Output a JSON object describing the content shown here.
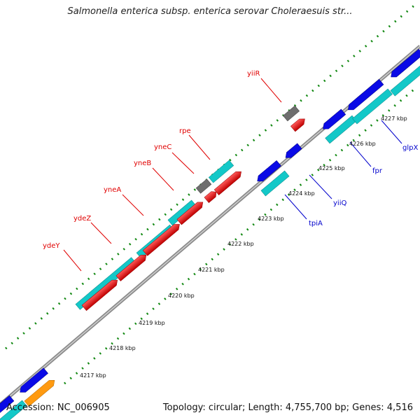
{
  "title": "Salmonella enterica subsp. enterica serovar Choleraesuis str...",
  "footer": {
    "accession": "Accession: NC_006905",
    "summary": "Topology: circular; Length: 4,755,700 bp; Genes: 4,516"
  },
  "colors": {
    "backbone": "#8a8a8a",
    "tick_dots": "#118811",
    "red_gene": "#ee0a0a",
    "cyan_gene": "#13c8c8",
    "blue_gene": "#0a0ae6",
    "gray_gene": "#6e6e6e",
    "orange_gene": "#ff9a10",
    "label_red": "#e00000",
    "label_blue": "#0000cc"
  },
  "tick_labels": [
    "4217 kbp",
    "4218 kbp",
    "4219 kbp",
    "4220 kbp",
    "4221 kbp",
    "4222 kbp",
    "4223 kbp",
    "4224 kbp",
    "4225 kbp",
    "4226 kbp",
    "4227 kbp"
  ],
  "gene_labels_red": [
    "ydeY",
    "ydeZ",
    "yneA",
    "yneB",
    "yneC",
    "rpe",
    "yiiR"
  ],
  "gene_labels_blue": [
    "tpiA",
    "yiiQ",
    "fpr",
    "glpX"
  ]
}
